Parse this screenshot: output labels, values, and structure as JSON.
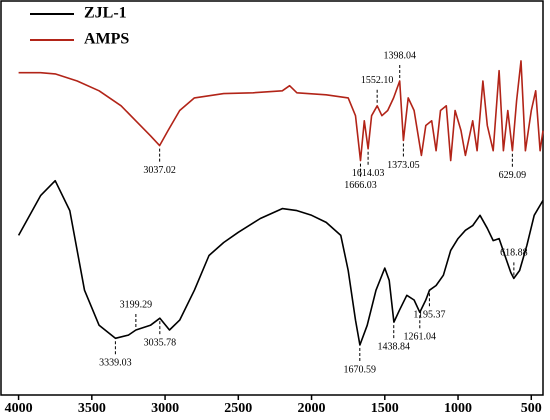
{
  "chart_data": {
    "type": "line",
    "xlim": [
      4120,
      420
    ],
    "ylim": [
      0,
      100
    ],
    "xticks": [
      4000,
      3500,
      3000,
      2500,
      2000,
      1500,
      1000,
      500
    ],
    "legend": "top-left",
    "series": [
      {
        "name": "ZJL-1",
        "color": "#000000",
        "x": [
          4000,
          3850,
          3750,
          3650,
          3550,
          3450,
          3339,
          3250,
          3199,
          3100,
          3035,
          2970,
          2900,
          2800,
          2700,
          2600,
          2500,
          2350,
          2200,
          2100,
          2000,
          1900,
          1800,
          1750,
          1700,
          1670,
          1620,
          1560,
          1500,
          1470,
          1438,
          1400,
          1350,
          1300,
          1261,
          1220,
          1195,
          1150,
          1100,
          1050,
          1000,
          950,
          900,
          850,
          800,
          760,
          720,
          680,
          640,
          619,
          580,
          530,
          480,
          420
        ],
        "values": [
          40.5,
          50.6,
          54.4,
          46.8,
          26.6,
          17.7,
          14.4,
          15.2,
          16.5,
          17.7,
          19.5,
          16.5,
          19.0,
          26.6,
          35.4,
          38.7,
          41.3,
          44.8,
          47.3,
          46.8,
          45.6,
          43.8,
          40.5,
          31.6,
          19.0,
          12.7,
          17.7,
          26.6,
          32.2,
          29.1,
          18.5,
          21.5,
          25.3,
          24.1,
          21.0,
          24.1,
          26.6,
          27.8,
          30.4,
          36.7,
          39.7,
          41.8,
          43.0,
          45.6,
          42.3,
          39.2,
          39.7,
          35.4,
          31.1,
          29.6,
          31.6,
          38.0,
          45.6,
          49.4
        ],
        "annotations": [
          {
            "text": "3339.03",
            "x": 3339.03,
            "y": 14.4,
            "side": "below"
          },
          {
            "text": "3199.29",
            "x": 3199.29,
            "y": 16.5,
            "side": "above"
          },
          {
            "text": "3035.78",
            "x": 3035.78,
            "y": 19.5,
            "side": "below"
          },
          {
            "text": "1670.59",
            "x": 1670.59,
            "y": 12.7,
            "side": "below"
          },
          {
            "text": "1438.84",
            "x": 1438.84,
            "y": 18.5,
            "side": "below"
          },
          {
            "text": "1261.04",
            "x": 1261.04,
            "y": 21.0,
            "side": "below"
          },
          {
            "text": "1195.37",
            "x": 1195.37,
            "y": 26.6,
            "side": "below"
          },
          {
            "text": "618.88",
            "x": 618.88,
            "y": 29.6,
            "side": "above"
          }
        ]
      },
      {
        "name": "AMPS",
        "color": "#b22418",
        "x": [
          4000,
          3850,
          3750,
          3600,
          3450,
          3300,
          3200,
          3100,
          3037,
          2980,
          2900,
          2800,
          2600,
          2400,
          2200,
          2150,
          2100,
          1900,
          1750,
          1700,
          1666,
          1640,
          1614,
          1590,
          1552,
          1520,
          1480,
          1440,
          1398,
          1373,
          1340,
          1300,
          1250,
          1220,
          1180,
          1150,
          1120,
          1080,
          1050,
          1020,
          980,
          950,
          900,
          870,
          830,
          800,
          760,
          720,
          690,
          660,
          629,
          600,
          570,
          540,
          500,
          470,
          440,
          420
        ],
        "values": [
          81.8,
          81.8,
          81.5,
          79.7,
          77.2,
          73.4,
          69.6,
          65.8,
          63.3,
          67.1,
          72.2,
          75.4,
          76.5,
          76.7,
          77.2,
          78.5,
          76.7,
          76.2,
          75.4,
          70.9,
          59.5,
          69.6,
          62.5,
          70.9,
          73.4,
          70.9,
          72.2,
          75.4,
          79.7,
          64.6,
          75.4,
          72.2,
          60.8,
          68.4,
          69.6,
          62.0,
          72.2,
          73.4,
          59.5,
          72.2,
          67.1,
          60.8,
          69.6,
          62.0,
          79.7,
          68.4,
          62.0,
          82.3,
          62.0,
          72.2,
          62.0,
          74.7,
          84.8,
          62.0,
          72.2,
          77.2,
          62.0,
          67.1
        ],
        "annotations": [
          {
            "text": "3037.02",
            "x": 3037.02,
            "y": 63.3,
            "side": "below"
          },
          {
            "text": "1666.03",
            "x": 1666.03,
            "y": 59.5,
            "side": "below"
          },
          {
            "text": "1614.03",
            "x": 1614.03,
            "y": 62.5,
            "side": "below"
          },
          {
            "text": "1552.10",
            "x": 1552.1,
            "y": 73.4,
            "side": "above"
          },
          {
            "text": "1398.04",
            "x": 1398.04,
            "y": 79.7,
            "side": "above"
          },
          {
            "text": "1373.05",
            "x": 1373.05,
            "y": 64.6,
            "side": "below"
          },
          {
            "text": "629.09",
            "x": 629.09,
            "y": 62.0,
            "side": "below"
          }
        ]
      }
    ]
  }
}
